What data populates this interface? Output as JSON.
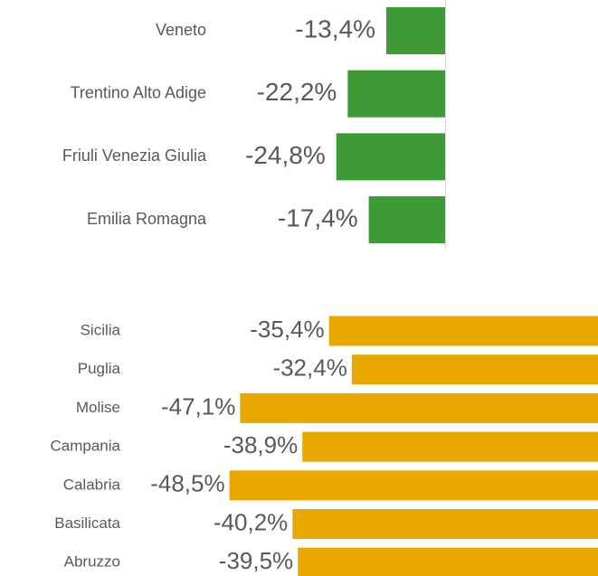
{
  "chart_data": [
    {
      "type": "bar",
      "orientation": "horizontal",
      "color": "#3d9a35",
      "categories": [
        "Veneto",
        "Trentino Alto Adige",
        "Friuli Venezia Giulia",
        "Emilia Romagna"
      ],
      "values": [
        -13.4,
        -22.2,
        -24.8,
        -17.4
      ],
      "value_labels": [
        "-13,4%",
        "-22,2%",
        "-24,8%",
        "-17,4%"
      ],
      "xlim": [
        -50,
        0
      ]
    },
    {
      "type": "bar",
      "orientation": "horizontal",
      "color": "#e8a800",
      "categories": [
        "Sicilia",
        "Puglia",
        "Molise",
        "Campania",
        "Calabria",
        "Basilicata",
        "Abruzzo"
      ],
      "values": [
        -35.4,
        -32.4,
        -47.1,
        -38.9,
        -48.5,
        -40.2,
        -39.5
      ],
      "value_labels": [
        "-35,4%",
        "-32,4%",
        "-47,1%",
        "-38,9%",
        "-48,5%",
        "-40,2%",
        "-39,5%"
      ],
      "xlim": [
        -50,
        0
      ]
    }
  ]
}
